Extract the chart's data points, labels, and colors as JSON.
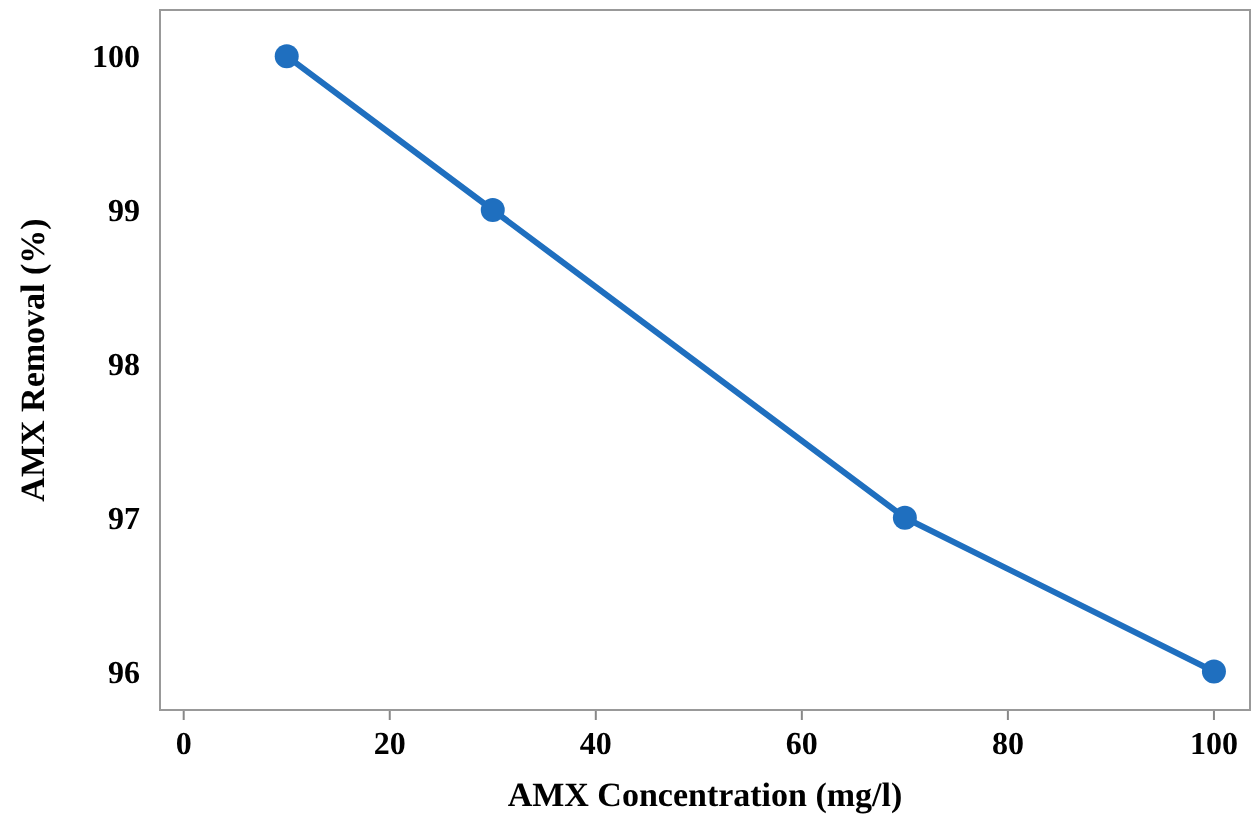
{
  "chart_data": {
    "type": "line",
    "xlabel": "AMX Concentration (mg/l)",
    "ylabel": "AMX Removal (%)",
    "x": [
      10,
      30,
      70,
      100
    ],
    "series": [
      {
        "color": "#1f6fbf",
        "values": [
          100,
          99,
          97,
          96
        ]
      }
    ],
    "xlim": [
      -2.3,
      103.5
    ],
    "ylim": [
      95.75,
      100.3
    ],
    "xticks": [
      0,
      20,
      40,
      60,
      80,
      100
    ],
    "yticks": [
      96,
      97,
      98,
      99,
      100
    ],
    "marker": "circle",
    "line_style": "solid"
  }
}
